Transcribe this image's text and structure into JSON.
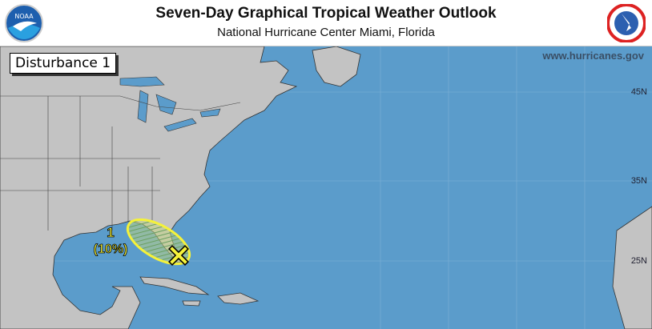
{
  "header": {
    "title": "Seven-Day Graphical Tropical Weather Outlook",
    "subtitle": "National Hurricane Center  Miami, Florida",
    "left_logo": "NOAA",
    "right_logo": "NATIONAL WEATHER SERVICE"
  },
  "map": {
    "panel_label": "Disturbance 1",
    "website": "www.hurricanes.gov",
    "latitude_labels": [
      "45N",
      "35N",
      "25N"
    ],
    "colors": {
      "ocean": "#5b9ccb",
      "land": "#c3c3c3",
      "area_fill": "#f2f04a",
      "area_outline": "#f5f23a"
    },
    "disturbances": [
      {
        "number": "1",
        "probability": "(10%)",
        "marker": "x-icon"
      }
    ]
  }
}
